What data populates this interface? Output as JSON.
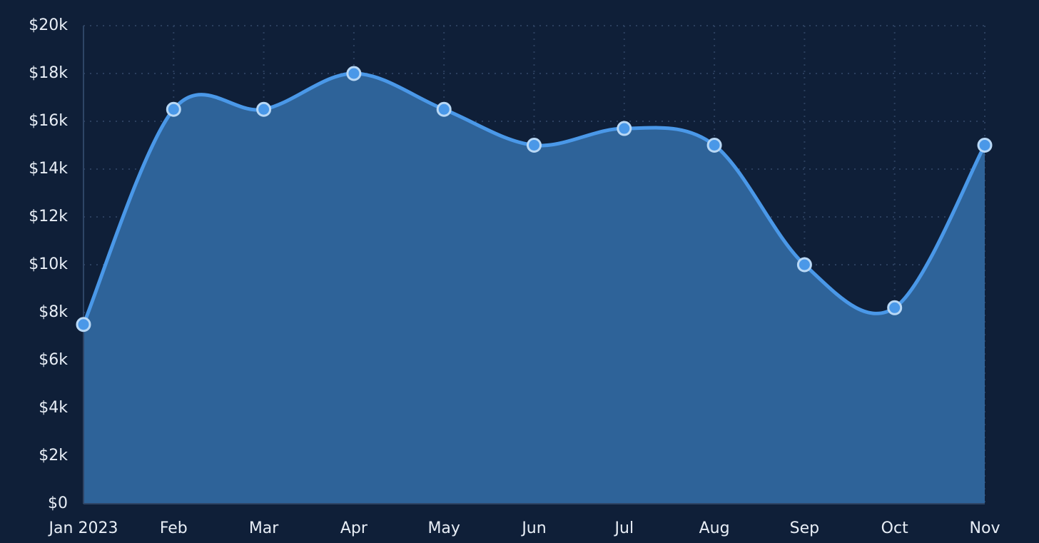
{
  "chart_data": {
    "type": "area",
    "categories": [
      "Jan 2023",
      "Feb",
      "Mar",
      "Apr",
      "May",
      "Jun",
      "Jul",
      "Aug",
      "Sep",
      "Oct",
      "Nov"
    ],
    "values": [
      7500,
      16500,
      16500,
      18000,
      16500,
      15000,
      15700,
      15000,
      10000,
      8200,
      15000
    ],
    "color": "#4a98e8",
    "area_color": "#2e6399",
    "marker_stroke": "#b9d8f5",
    "ylim": [
      0,
      20000
    ],
    "yticks": [
      {
        "value": 0,
        "label": "$0"
      },
      {
        "value": 2000,
        "label": "$2k"
      },
      {
        "value": 4000,
        "label": "$4k"
      },
      {
        "value": 6000,
        "label": "$6k"
      },
      {
        "value": 8000,
        "label": "$8k"
      },
      {
        "value": 10000,
        "label": "$10k"
      },
      {
        "value": 12000,
        "label": "$12k"
      },
      {
        "value": 14000,
        "label": "$14k"
      },
      {
        "value": 16000,
        "label": "$16k"
      },
      {
        "value": 18000,
        "label": "$18k"
      },
      {
        "value": 20000,
        "label": "$20k"
      }
    ],
    "grid": true,
    "smooth": true
  }
}
